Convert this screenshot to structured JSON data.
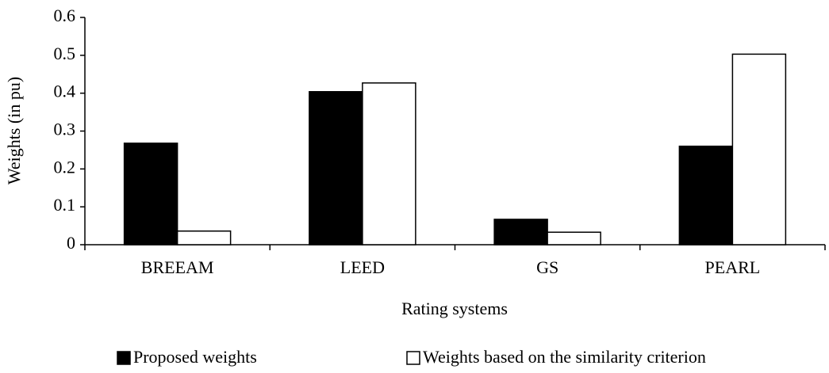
{
  "chart_data": {
    "type": "bar",
    "categories": [
      "BREEAM",
      "LEED",
      "GS",
      "PEARL"
    ],
    "series": [
      {
        "name": "Proposed weights",
        "color": "#000000",
        "values": [
          0.268,
          0.404,
          0.067,
          0.26
        ]
      },
      {
        "name": "Weights based on the similarity criterion",
        "color": "#ffffff",
        "values": [
          0.036,
          0.427,
          0.033,
          0.503
        ]
      }
    ],
    "xlabel": "Rating systems",
    "ylabel": "Weights (in pu)",
    "ylim": [
      0,
      0.6
    ],
    "yticks": [
      0,
      0.1,
      0.2,
      0.3,
      0.4,
      0.5,
      0.6
    ],
    "grid": false,
    "legend": "bottom"
  }
}
